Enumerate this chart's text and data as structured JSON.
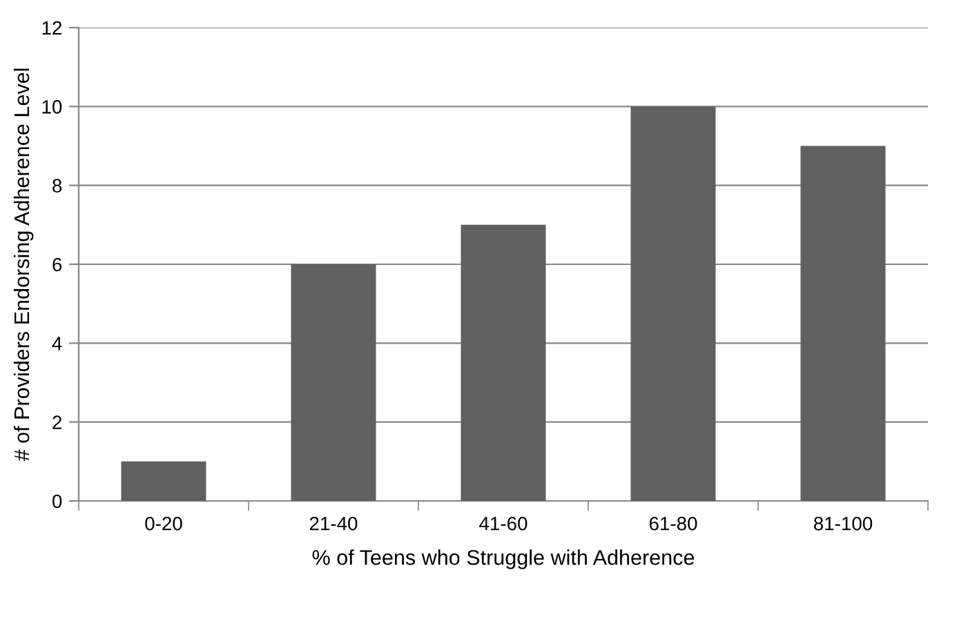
{
  "chart_data": {
    "type": "bar",
    "xlabel": "% of Teens who Struggle with Adherence",
    "ylabel": "# of Providers Endorsing Adherence Level",
    "categories": [
      "0-20",
      "21-40",
      "41-60",
      "61-80",
      "81-100"
    ],
    "values": [
      1,
      6,
      7,
      10,
      9
    ],
    "color": "#606060",
    "ylim": [
      0,
      12
    ],
    "yticks": [
      0,
      2,
      4,
      6,
      8,
      10,
      12
    ],
    "grid": "y",
    "legend": false
  }
}
